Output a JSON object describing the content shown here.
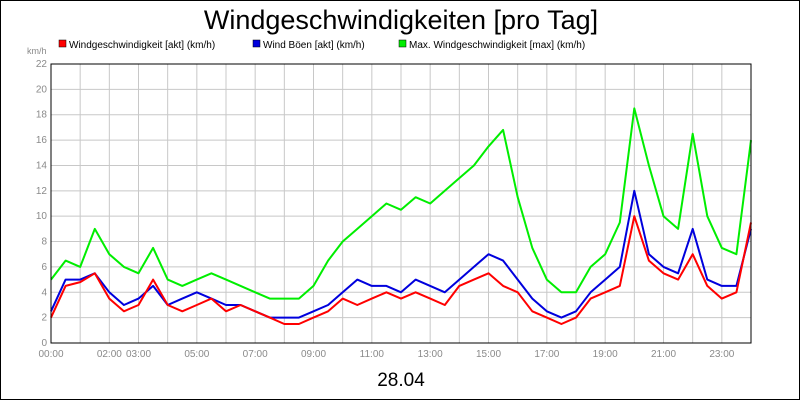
{
  "chart_data": {
    "type": "line",
    "title": "Windgeschwindigkeiten [pro Tag]",
    "ylabel": "km/h",
    "xlabel": "28.04",
    "ylim": [
      0,
      22
    ],
    "yticks": [
      0,
      2,
      4,
      6,
      8,
      10,
      12,
      14,
      16,
      18,
      20,
      22
    ],
    "xlim": [
      0,
      24
    ],
    "xticks": [
      {
        "x": 0,
        "label": "00:00"
      },
      {
        "x": 2,
        "label": "02:00"
      },
      {
        "x": 3,
        "label": "03:00"
      },
      {
        "x": 5,
        "label": "05:00"
      },
      {
        "x": 7,
        "label": "07:00"
      },
      {
        "x": 9,
        "label": "09:00"
      },
      {
        "x": 11,
        "label": "11:00"
      },
      {
        "x": 13,
        "label": "13:00"
      },
      {
        "x": 15,
        "label": "15:00"
      },
      {
        "x": 17,
        "label": "17:00"
      },
      {
        "x": 19,
        "label": "19:00"
      },
      {
        "x": 21,
        "label": "21:00"
      },
      {
        "x": 23,
        "label": "23:00"
      }
    ],
    "grid": true,
    "legend_position": "top",
    "x": [
      0,
      0.5,
      1,
      1.5,
      2,
      2.5,
      3,
      3.5,
      4,
      4.5,
      5,
      5.5,
      6,
      6.5,
      7,
      7.5,
      8,
      8.5,
      9,
      9.5,
      10,
      10.5,
      11,
      11.5,
      12,
      12.5,
      13,
      13.5,
      14,
      14.5,
      15,
      15.5,
      16,
      16.5,
      17,
      17.5,
      18,
      18.5,
      19,
      19.5,
      20,
      20.5,
      21,
      21.5,
      22,
      22.5,
      23,
      23.5,
      24
    ],
    "series": [
      {
        "name": "Windgeschwindigkeit [akt] (km/h)",
        "color": "#ff0000",
        "values": [
          2.0,
          4.5,
          4.8,
          5.5,
          3.5,
          2.5,
          3.0,
          5.0,
          3.0,
          2.5,
          3.0,
          3.5,
          2.5,
          3.0,
          2.5,
          2.0,
          1.5,
          1.5,
          2.0,
          2.5,
          3.5,
          3.0,
          3.5,
          4.0,
          3.5,
          4.0,
          3.5,
          3.0,
          4.5,
          5.0,
          5.5,
          4.5,
          4.0,
          2.5,
          2.0,
          1.5,
          2.0,
          3.5,
          4.0,
          4.5,
          10.0,
          6.5,
          5.5,
          5.0,
          7.0,
          4.5,
          3.5,
          4.0,
          9.5
        ]
      },
      {
        "name": "Wind Böen [akt] (km/h)",
        "color": "#0000dd",
        "values": [
          2.5,
          5.0,
          5.0,
          5.5,
          4.0,
          3.0,
          3.5,
          4.5,
          3.0,
          3.5,
          4.0,
          3.5,
          3.0,
          3.0,
          2.5,
          2.0,
          2.0,
          2.0,
          2.5,
          3.0,
          4.0,
          5.0,
          4.5,
          4.5,
          4.0,
          5.0,
          4.5,
          4.0,
          5.0,
          6.0,
          7.0,
          6.5,
          5.0,
          3.5,
          2.5,
          2.0,
          2.5,
          4.0,
          5.0,
          6.0,
          12.0,
          7.0,
          6.0,
          5.5,
          9.0,
          5.0,
          4.5,
          4.5,
          9.0
        ]
      },
      {
        "name": "Max. Windgeschwindigkeit [max] (km/h)",
        "color": "#00ee00",
        "values": [
          5.0,
          6.5,
          6.0,
          9.0,
          7.0,
          6.0,
          5.5,
          7.5,
          5.0,
          4.5,
          5.0,
          5.5,
          5.0,
          4.5,
          4.0,
          3.5,
          3.5,
          3.5,
          4.5,
          6.5,
          8.0,
          9.0,
          10.0,
          11.0,
          10.5,
          11.5,
          11.0,
          12.0,
          13.0,
          14.0,
          15.5,
          16.8,
          11.5,
          7.5,
          5.0,
          4.0,
          4.0,
          6.0,
          7.0,
          9.5,
          18.5,
          14.0,
          10.0,
          9.0,
          16.5,
          10.0,
          7.5,
          7.0,
          16.0
        ]
      }
    ]
  }
}
